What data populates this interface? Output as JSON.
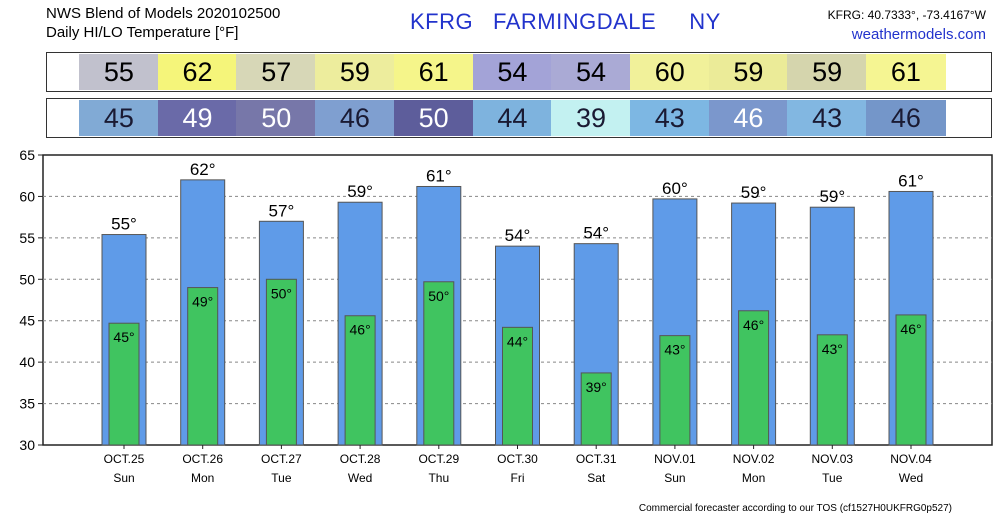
{
  "header": {
    "title_line1": "NWS Blend of Models 2020102500",
    "title_line2": "Daily HI/LO Temperature [°F]",
    "station_code": "KFRG",
    "station_name": "FARMINGDALE",
    "station_state": "NY",
    "coords": "KFRG: 40.7333°, -73.4167°W",
    "website": "weathermodels.com"
  },
  "hi_band": [
    {
      "value": "55",
      "color": "#c1c1cd"
    },
    {
      "value": "62",
      "color": "#f5f57a"
    },
    {
      "value": "57",
      "color": "#d7d7b7"
    },
    {
      "value": "59",
      "color": "#eded9d"
    },
    {
      "value": "61",
      "color": "#f5f58a"
    },
    {
      "value": "54",
      "color": "#a3a3d7"
    },
    {
      "value": "54",
      "color": "#aaaad5"
    },
    {
      "value": "60",
      "color": "#f1f19a"
    },
    {
      "value": "59",
      "color": "#ebeb98"
    },
    {
      "value": "59",
      "color": "#d5d5ad"
    },
    {
      "value": "61",
      "color": "#f5f592"
    }
  ],
  "lo_band": [
    {
      "value": "45",
      "color": "#81aad5",
      "text_color": "#1a1a33"
    },
    {
      "value": "49",
      "color": "#6a6aa8",
      "text_color": "#ffffff"
    },
    {
      "value": "50",
      "color": "#7777a9",
      "text_color": "#ffffff"
    },
    {
      "value": "46",
      "color": "#7f9fd0",
      "text_color": "#1a1a33"
    },
    {
      "value": "50",
      "color": "#5d5d9b",
      "text_color": "#ffffff"
    },
    {
      "value": "44",
      "color": "#7eb3de",
      "text_color": "#1a1a33"
    },
    {
      "value": "39",
      "color": "#c3f1f1",
      "text_color": "#1a1a33"
    },
    {
      "value": "43",
      "color": "#7db7e3",
      "text_color": "#1a1a33"
    },
    {
      "value": "46",
      "color": "#7b97cc",
      "text_color": "#ffffff"
    },
    {
      "value": "43",
      "color": "#82b7e1",
      "text_color": "#1a1a33"
    },
    {
      "value": "46",
      "color": "#7496c9",
      "text_color": "#1a1a33"
    }
  ],
  "chart_data": {
    "type": "bar",
    "categories": [
      "OCT.25",
      "OCT.26",
      "OCT.27",
      "OCT.28",
      "OCT.29",
      "OCT.30",
      "OCT.31",
      "NOV.01",
      "NOV.02",
      "NOV.03",
      "NOV.04"
    ],
    "days": [
      "Sun",
      "Mon",
      "Tue",
      "Wed",
      "Thu",
      "Fri",
      "Sat",
      "Sun",
      "Mon",
      "Tue",
      "Wed"
    ],
    "series": [
      {
        "values": [
          55.4,
          62.0,
          57.0,
          59.3,
          61.2,
          54.0,
          54.3,
          59.7,
          59.2,
          58.7,
          60.6
        ],
        "labels": [
          "55°",
          "62°",
          "57°",
          "59°",
          "61°",
          "54°",
          "54°",
          "60°",
          "59°",
          "59°",
          "61°"
        ],
        "color": "#5f9be8"
      },
      {
        "values": [
          44.7,
          49.0,
          50.0,
          45.6,
          49.7,
          44.2,
          38.7,
          43.2,
          46.2,
          43.3,
          45.7
        ],
        "labels": [
          "45°",
          "49°",
          "50°",
          "46°",
          "50°",
          "44°",
          "39°",
          "43°",
          "46°",
          "43°",
          "46°"
        ],
        "color": "#40c460"
      }
    ],
    "ylim": [
      30,
      65
    ],
    "yticks": [
      30,
      35,
      40,
      45,
      50,
      55,
      60,
      65
    ],
    "grid": true
  },
  "footer": "Commercial forecaster according to our TOS (cf1527H0UKFRG0p527)"
}
